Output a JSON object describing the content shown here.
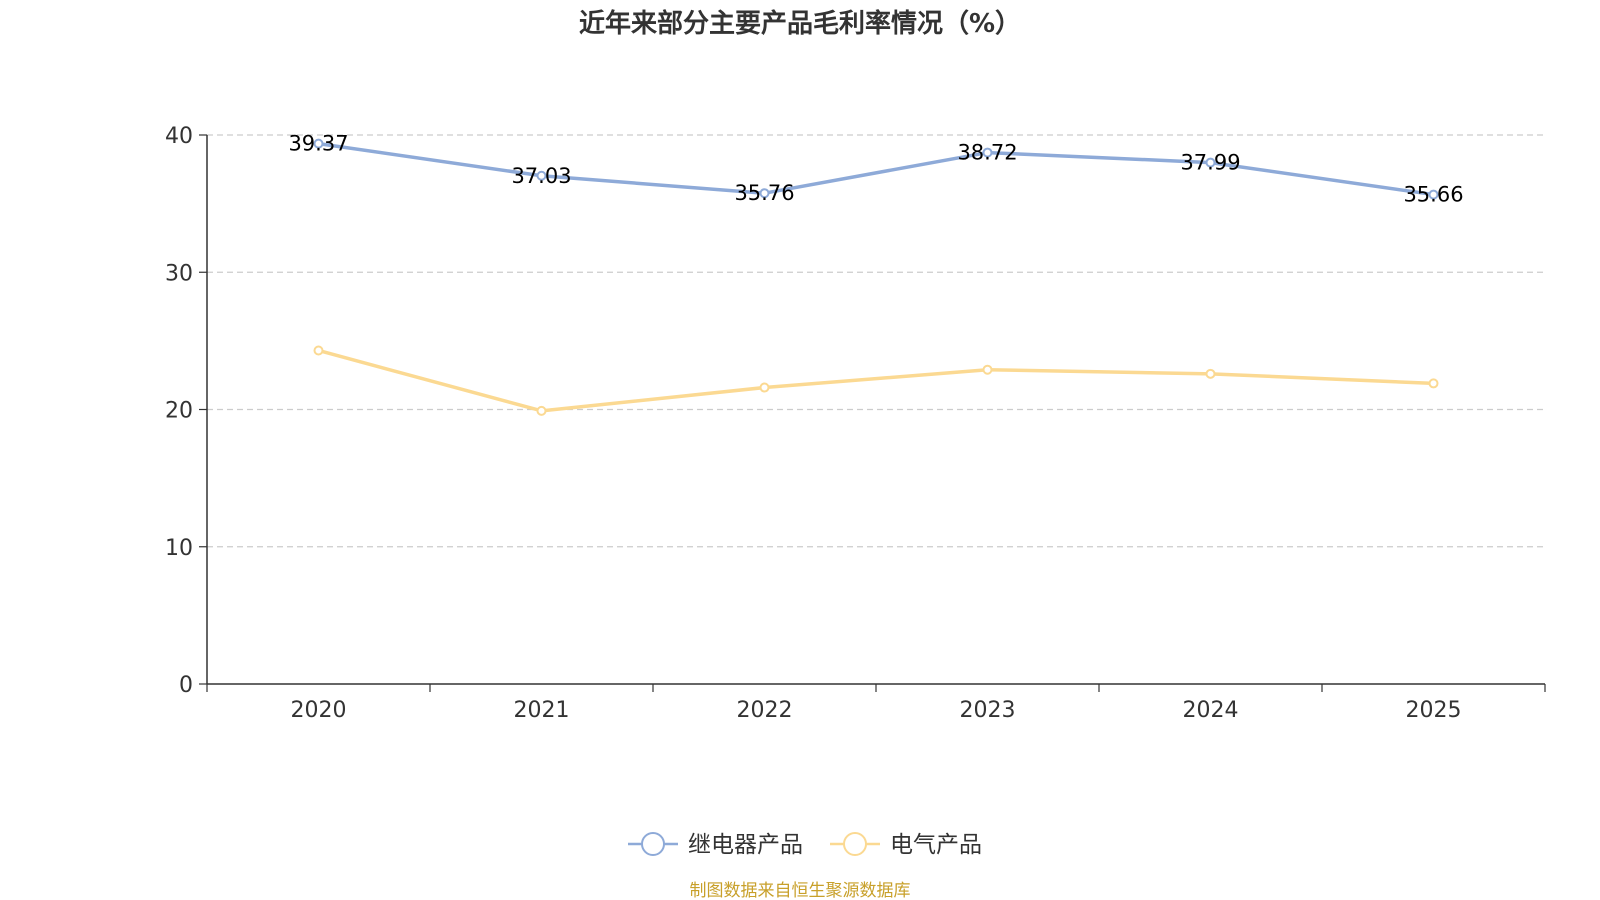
{
  "chart_data": {
    "type": "line",
    "title": "近年来部分主要产品毛利率情况（%）",
    "categories": [
      "2020",
      "2021",
      "2022",
      "2023",
      "2024",
      "2025"
    ],
    "ylim": [
      0,
      40
    ],
    "yticks": [
      0,
      10,
      20,
      30,
      40
    ],
    "grid": true,
    "legend_position": "bottom",
    "series": [
      {
        "name": "继电器产品",
        "color": "#8eaad8",
        "values": [
          39.37,
          37.03,
          35.76,
          38.72,
          37.99,
          35.66
        ],
        "labels": [
          "39.37",
          "37.03",
          "35.76",
          "38.72",
          "37.99",
          "35.66"
        ],
        "show_labels": true
      },
      {
        "name": "电气产品",
        "color": "#fbd992",
        "values": [
          24.3,
          19.9,
          21.6,
          22.9,
          22.6,
          21.9
        ],
        "show_labels": false
      }
    ]
  },
  "source_note": "制图数据来自恒生聚源数据库",
  "colors": {
    "axis": "#333333",
    "grid": "#cccccc",
    "source": "#c8a02a"
  }
}
